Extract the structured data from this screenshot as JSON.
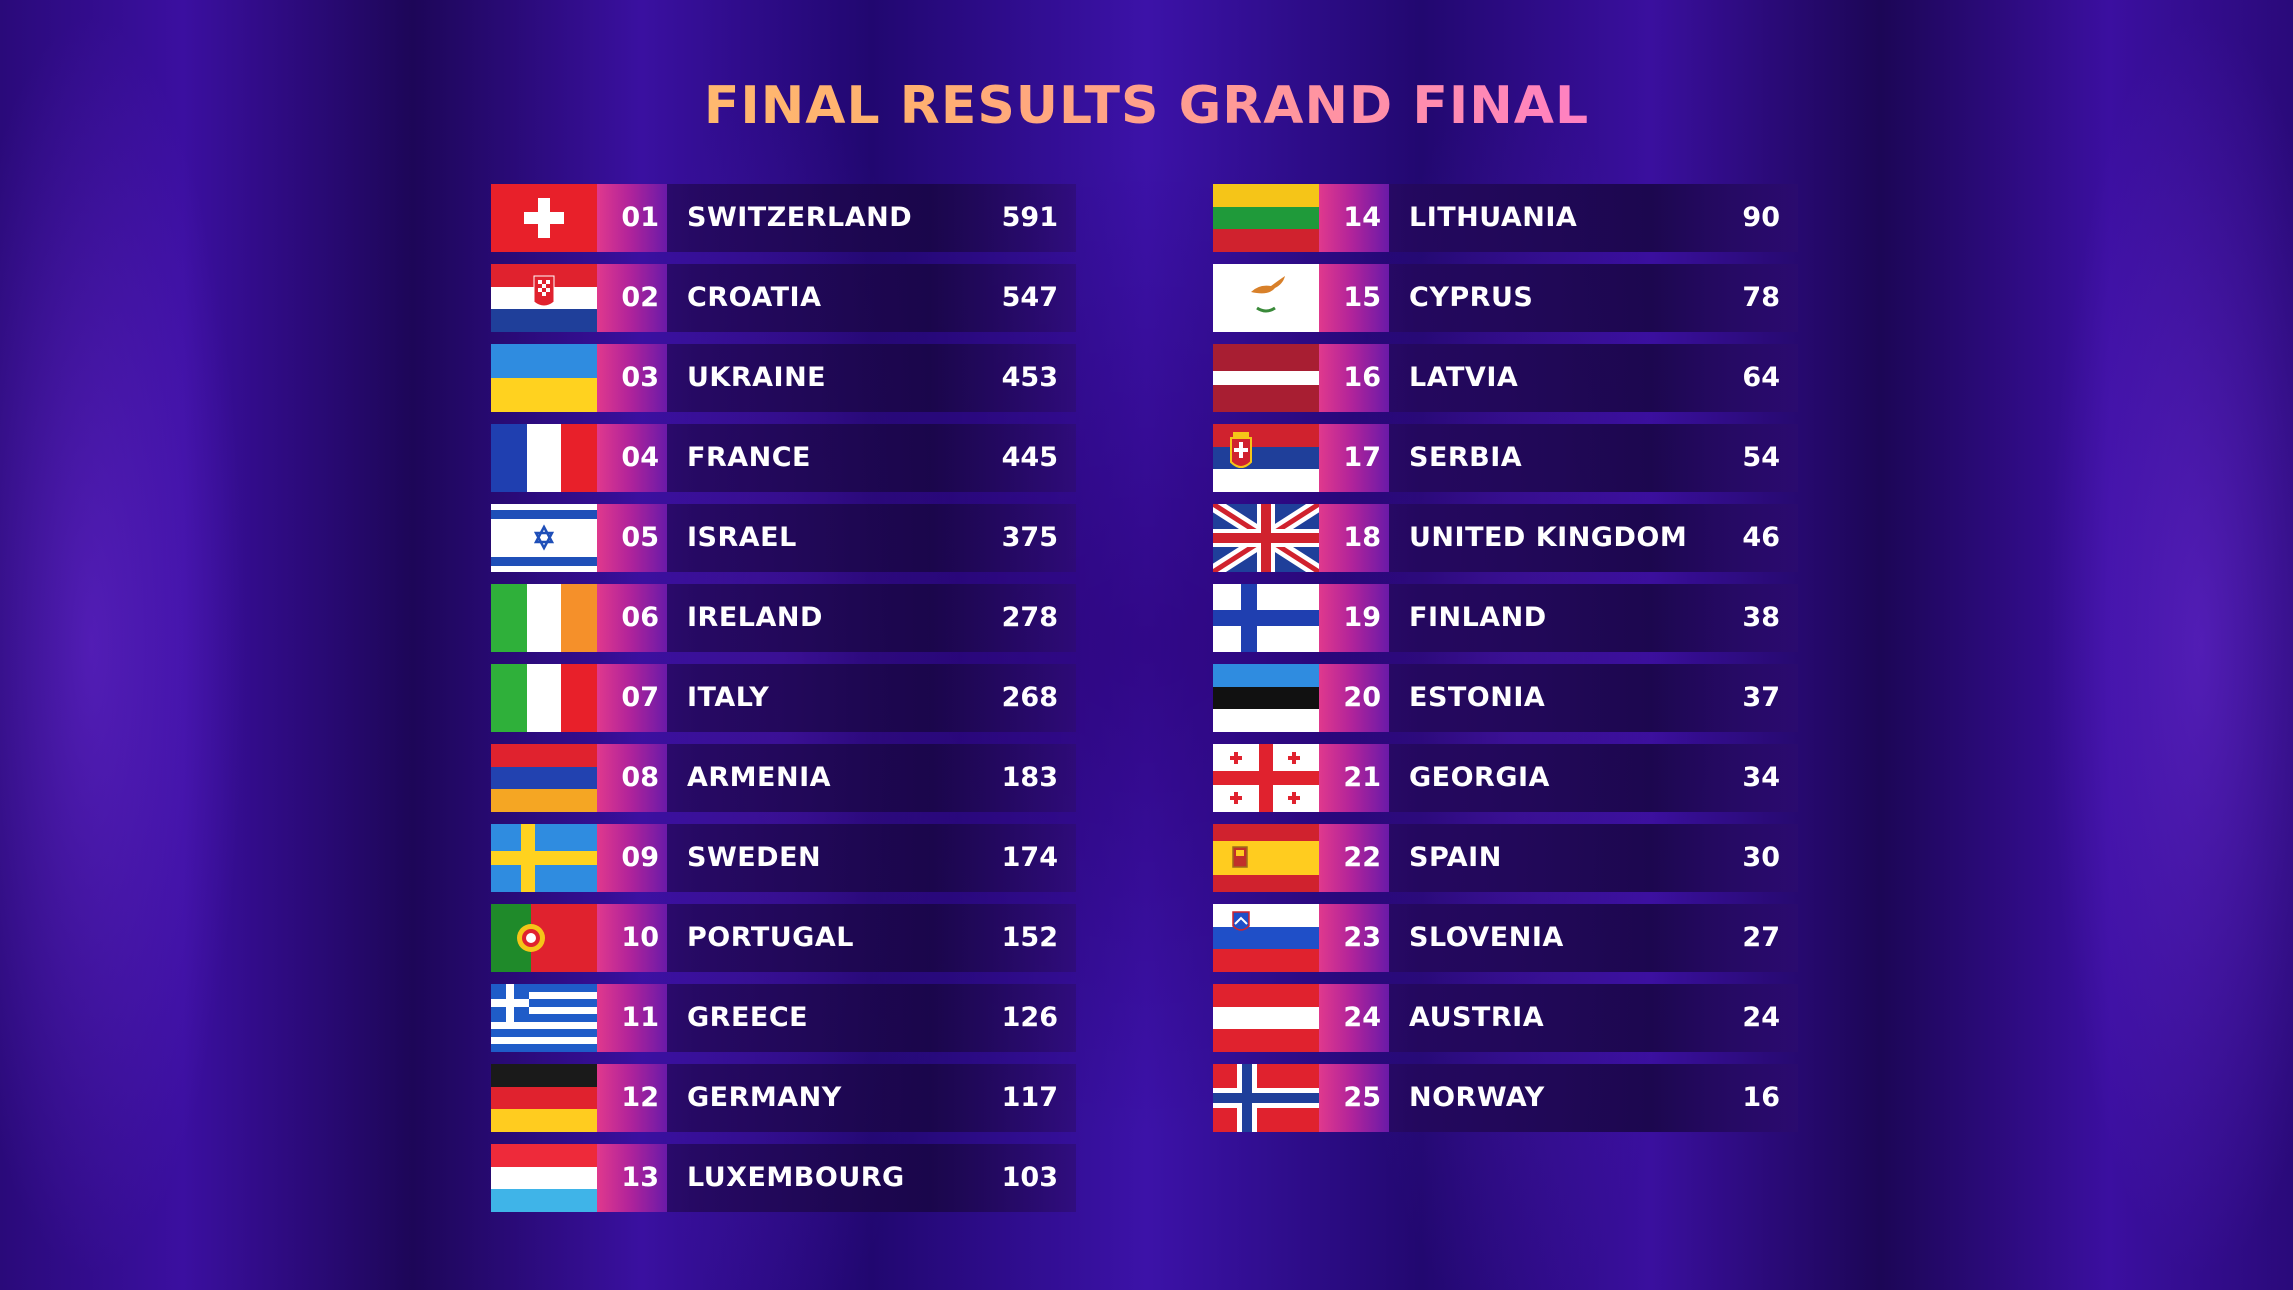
{
  "title": "FINAL RESULTS GRAND FINAL",
  "results_left": [
    {
      "rank": "01",
      "country": "SWITZERLAND",
      "points": "591",
      "flag": "switzerland-flag-icon"
    },
    {
      "rank": "02",
      "country": "CROATIA",
      "points": "547",
      "flag": "croatia-flag-icon"
    },
    {
      "rank": "03",
      "country": "UKRAINE",
      "points": "453",
      "flag": "ukraine-flag-icon"
    },
    {
      "rank": "04",
      "country": "FRANCE",
      "points": "445",
      "flag": "france-flag-icon"
    },
    {
      "rank": "05",
      "country": "ISRAEL",
      "points": "375",
      "flag": "israel-flag-icon"
    },
    {
      "rank": "06",
      "country": "IRELAND",
      "points": "278",
      "flag": "ireland-flag-icon"
    },
    {
      "rank": "07",
      "country": "ITALY",
      "points": "268",
      "flag": "italy-flag-icon"
    },
    {
      "rank": "08",
      "country": "ARMENIA",
      "points": "183",
      "flag": "armenia-flag-icon"
    },
    {
      "rank": "09",
      "country": "SWEDEN",
      "points": "174",
      "flag": "sweden-flag-icon"
    },
    {
      "rank": "10",
      "country": "PORTUGAL",
      "points": "152",
      "flag": "portugal-flag-icon"
    },
    {
      "rank": "11",
      "country": "GREECE",
      "points": "126",
      "flag": "greece-flag-icon"
    },
    {
      "rank": "12",
      "country": "GERMANY",
      "points": "117",
      "flag": "germany-flag-icon"
    },
    {
      "rank": "13",
      "country": "LUXEMBOURG",
      "points": "103",
      "flag": "luxembourg-flag-icon"
    }
  ],
  "results_right": [
    {
      "rank": "14",
      "country": "LITHUANIA",
      "points": "90",
      "flag": "lithuania-flag-icon"
    },
    {
      "rank": "15",
      "country": "CYPRUS",
      "points": "78",
      "flag": "cyprus-flag-icon"
    },
    {
      "rank": "16",
      "country": "LATVIA",
      "points": "64",
      "flag": "latvia-flag-icon"
    },
    {
      "rank": "17",
      "country": "SERBIA",
      "points": "54",
      "flag": "serbia-flag-icon"
    },
    {
      "rank": "18",
      "country": "UNITED KINGDOM",
      "points": "46",
      "flag": "united-kingdom-flag-icon"
    },
    {
      "rank": "19",
      "country": "FINLAND",
      "points": "38",
      "flag": "finland-flag-icon"
    },
    {
      "rank": "20",
      "country": "ESTONIA",
      "points": "37",
      "flag": "estonia-flag-icon"
    },
    {
      "rank": "21",
      "country": "GEORGIA",
      "points": "34",
      "flag": "georgia-flag-icon"
    },
    {
      "rank": "22",
      "country": "SPAIN",
      "points": "30",
      "flag": "spain-flag-icon"
    },
    {
      "rank": "23",
      "country": "SLOVENIA",
      "points": "27",
      "flag": "slovenia-flag-icon"
    },
    {
      "rank": "24",
      "country": "AUSTRIA",
      "points": "24",
      "flag": "austria-flag-icon"
    },
    {
      "rank": "25",
      "country": "NORWAY",
      "points": "16",
      "flag": "norway-flag-icon"
    }
  ]
}
